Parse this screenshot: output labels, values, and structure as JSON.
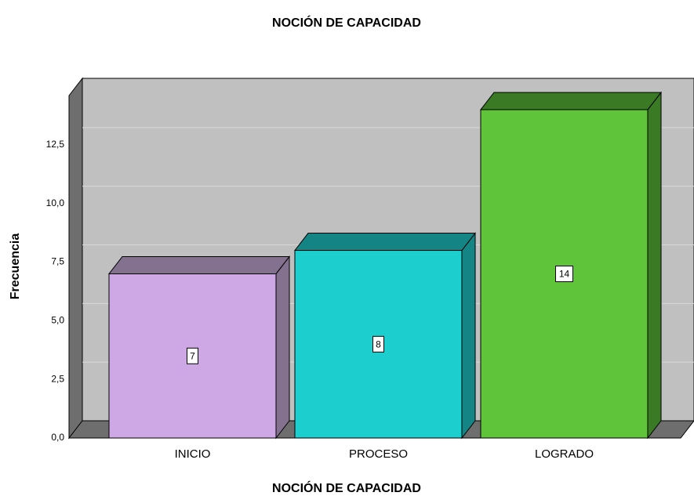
{
  "chart_data": {
    "type": "bar3d",
    "title": "NOCIÓN DE CAPACIDAD",
    "x_label": "NOCIÓN DE CAPACIDAD",
    "y_label": "Frecuencia",
    "categories": [
      "INICIO",
      "PROCESO",
      "LOGRADO"
    ],
    "values": [
      7,
      8,
      14
    ],
    "colors": [
      "#cda8e4",
      "#1dcece",
      "#5fc43a"
    ],
    "side_colors": [
      "#84708f",
      "#148484",
      "#3a7a25"
    ],
    "ylim": [
      0,
      14.6
    ],
    "yticks": [
      {
        "value": 0,
        "label": "0,0"
      },
      {
        "value": 2.5,
        "label": "2,5"
      },
      {
        "value": 5,
        "label": "5,0"
      },
      {
        "value": 7.5,
        "label": "7,5"
      },
      {
        "value": 10,
        "label": "10,0"
      },
      {
        "value": 12.5,
        "label": "12,5"
      }
    ],
    "grid": true
  }
}
